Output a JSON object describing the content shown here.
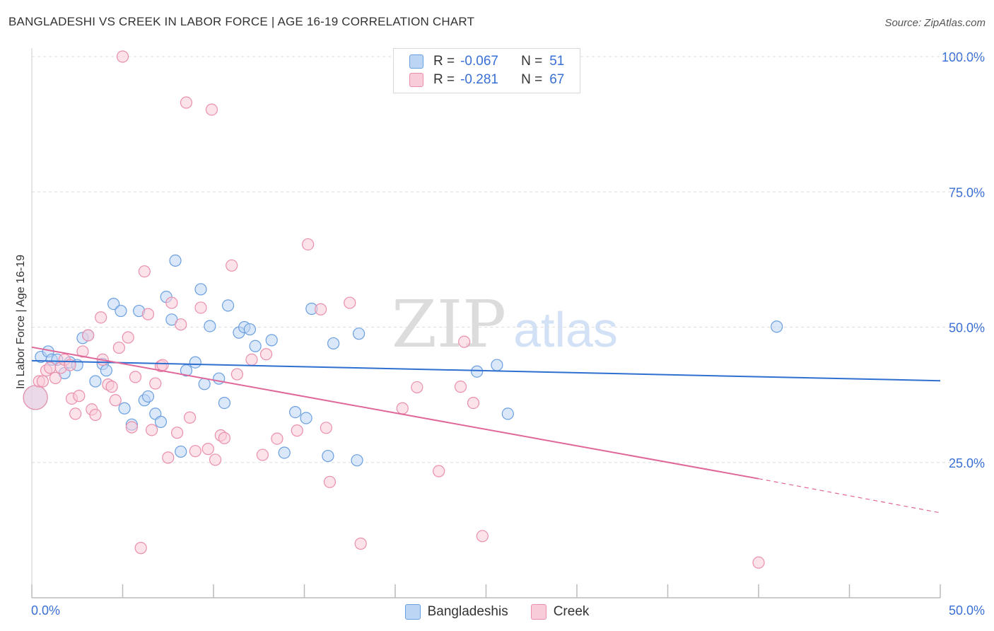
{
  "title": "BANGLADESHI VS CREEK IN LABOR FORCE | AGE 16-19 CORRELATION CHART",
  "source": "Source: ZipAtlas.com",
  "colors": {
    "blue_fill": "#bdd5f5",
    "blue_stroke": "#6a9fe0",
    "blue_line": "#2e6fd0",
    "pink_fill": "#f9ccd9",
    "pink_stroke": "#ea8fab",
    "pink_line": "#e0679a",
    "axis_text": "#3a6fd4",
    "grid": "#dddddd"
  },
  "legend_top": {
    "rows": [
      {
        "r_label": "R =",
        "r_value": "-0.067",
        "n_label": "N =",
        "n_value": "51"
      },
      {
        "r_label": "R =",
        "r_value": "-0.281",
        "n_label": "N =",
        "n_value": "67"
      }
    ]
  },
  "chart_data": {
    "type": "scatter",
    "title": "BANGLADESHI VS CREEK IN LABOR FORCE | AGE 16-19 CORRELATION CHART",
    "xlabel": "",
    "ylabel": "In Labor Force | Age 16-19",
    "xlim": [
      0,
      50
    ],
    "ylim": [
      0,
      102
    ],
    "x_tick_labels": [
      "0.0%",
      "50.0%"
    ],
    "y_ticks": [
      25,
      50,
      75,
      100
    ],
    "y_tick_labels": [
      "25.0%",
      "50.0%",
      "75.0%",
      "100.0%"
    ],
    "grid": true,
    "legend_position": "bottom",
    "watermark": {
      "zip": "ZIP",
      "atlas": "atlas"
    },
    "series": [
      {
        "name": "Bangladeshis",
        "color": "blue",
        "trend": {
          "x": [
            0,
            50
          ],
          "y": [
            43.8,
            40.1
          ],
          "dashed_from": null
        },
        "points": [
          [
            0.2,
            37,
            "big"
          ],
          [
            0.5,
            44.5
          ],
          [
            0.9,
            45.5
          ],
          [
            1.1,
            44
          ],
          [
            1.4,
            44
          ],
          [
            1.8,
            41.5
          ],
          [
            2.1,
            43.5
          ],
          [
            2.5,
            43
          ],
          [
            2.8,
            48
          ],
          [
            3.1,
            48.5
          ],
          [
            3.5,
            40
          ],
          [
            3.9,
            43.2
          ],
          [
            4.1,
            42
          ],
          [
            4.5,
            54.3
          ],
          [
            4.9,
            53
          ],
          [
            5.1,
            35
          ],
          [
            5.5,
            32
          ],
          [
            5.9,
            53
          ],
          [
            6.2,
            36.5
          ],
          [
            6.4,
            37.2
          ],
          [
            6.8,
            34
          ],
          [
            7.1,
            32.5
          ],
          [
            7.4,
            55.6
          ],
          [
            7.7,
            51.4
          ],
          [
            7.9,
            62.3
          ],
          [
            8.2,
            27
          ],
          [
            8.5,
            42
          ],
          [
            9.0,
            43.5
          ],
          [
            9.3,
            57
          ],
          [
            9.5,
            39.5
          ],
          [
            9.8,
            50.2
          ],
          [
            10.3,
            40.5
          ],
          [
            10.6,
            36
          ],
          [
            10.8,
            54
          ],
          [
            11.4,
            49
          ],
          [
            11.7,
            50
          ],
          [
            12.0,
            49.6
          ],
          [
            12.3,
            46.5
          ],
          [
            13.2,
            47.6
          ],
          [
            13.9,
            26.8
          ],
          [
            14.5,
            34.3
          ],
          [
            15.1,
            33.2
          ],
          [
            15.4,
            53.4
          ],
          [
            16.3,
            26.2
          ],
          [
            16.6,
            47
          ],
          [
            17.9,
            25.4
          ],
          [
            18.0,
            48.8
          ],
          [
            24.5,
            41.8
          ],
          [
            25.6,
            43
          ],
          [
            26.2,
            34
          ],
          [
            41.0,
            50.1
          ]
        ]
      },
      {
        "name": "Creek",
        "color": "pink",
        "trend": {
          "x": [
            0,
            40,
            50
          ],
          "y": [
            46.3,
            22.0,
            15.7
          ],
          "dashed_from": 40
        },
        "points": [
          [
            0.2,
            37,
            "big"
          ],
          [
            0.4,
            40
          ],
          [
            0.6,
            40
          ],
          [
            0.8,
            42
          ],
          [
            1.0,
            42.5
          ],
          [
            1.3,
            40.6
          ],
          [
            1.6,
            42.5
          ],
          [
            1.8,
            44
          ],
          [
            2.1,
            43
          ],
          [
            2.2,
            36.8
          ],
          [
            2.4,
            34
          ],
          [
            2.6,
            37.3
          ],
          [
            2.8,
            45.5
          ],
          [
            3.1,
            48.5
          ],
          [
            3.3,
            34.8
          ],
          [
            3.5,
            33.8
          ],
          [
            3.8,
            51.8
          ],
          [
            3.9,
            44
          ],
          [
            4.2,
            39.4
          ],
          [
            4.4,
            39
          ],
          [
            4.6,
            36.5
          ],
          [
            4.8,
            46.2
          ],
          [
            5.3,
            48.1
          ],
          [
            5.5,
            31.5
          ],
          [
            5.7,
            40.8
          ],
          [
            6.0,
            9.2
          ],
          [
            6.2,
            60.3
          ],
          [
            6.4,
            52.4
          ],
          [
            6.6,
            31
          ],
          [
            6.8,
            39.6
          ],
          [
            7.1,
            42.8
          ],
          [
            7.2,
            43
          ],
          [
            7.5,
            25.9
          ],
          [
            7.7,
            54.5
          ],
          [
            8.0,
            30.5
          ],
          [
            8.2,
            50.5
          ],
          [
            8.5,
            91.5
          ],
          [
            8.7,
            33.3
          ],
          [
            9.0,
            27.1
          ],
          [
            9.3,
            53.6
          ],
          [
            9.7,
            27.5
          ],
          [
            9.9,
            90.2
          ],
          [
            10.1,
            25.5
          ],
          [
            10.4,
            30
          ],
          [
            10.6,
            29.5
          ],
          [
            11.0,
            61.4
          ],
          [
            11.3,
            41.3
          ],
          [
            12.1,
            44
          ],
          [
            12.7,
            26.4
          ],
          [
            12.9,
            45
          ],
          [
            13.5,
            29.4
          ],
          [
            14.6,
            30.9
          ],
          [
            15.2,
            65.3
          ],
          [
            15.9,
            53.3
          ],
          [
            16.2,
            31.4
          ],
          [
            16.4,
            21.4
          ],
          [
            17.5,
            54.5
          ],
          [
            18.1,
            10
          ],
          [
            20.4,
            35
          ],
          [
            21.2,
            38.9
          ],
          [
            22.4,
            23.4
          ],
          [
            23.6,
            39
          ],
          [
            23.8,
            47.3
          ],
          [
            24.3,
            36
          ],
          [
            24.8,
            11.4
          ],
          [
            40.0,
            6.5
          ],
          [
            5.0,
            100.0
          ]
        ]
      }
    ]
  }
}
